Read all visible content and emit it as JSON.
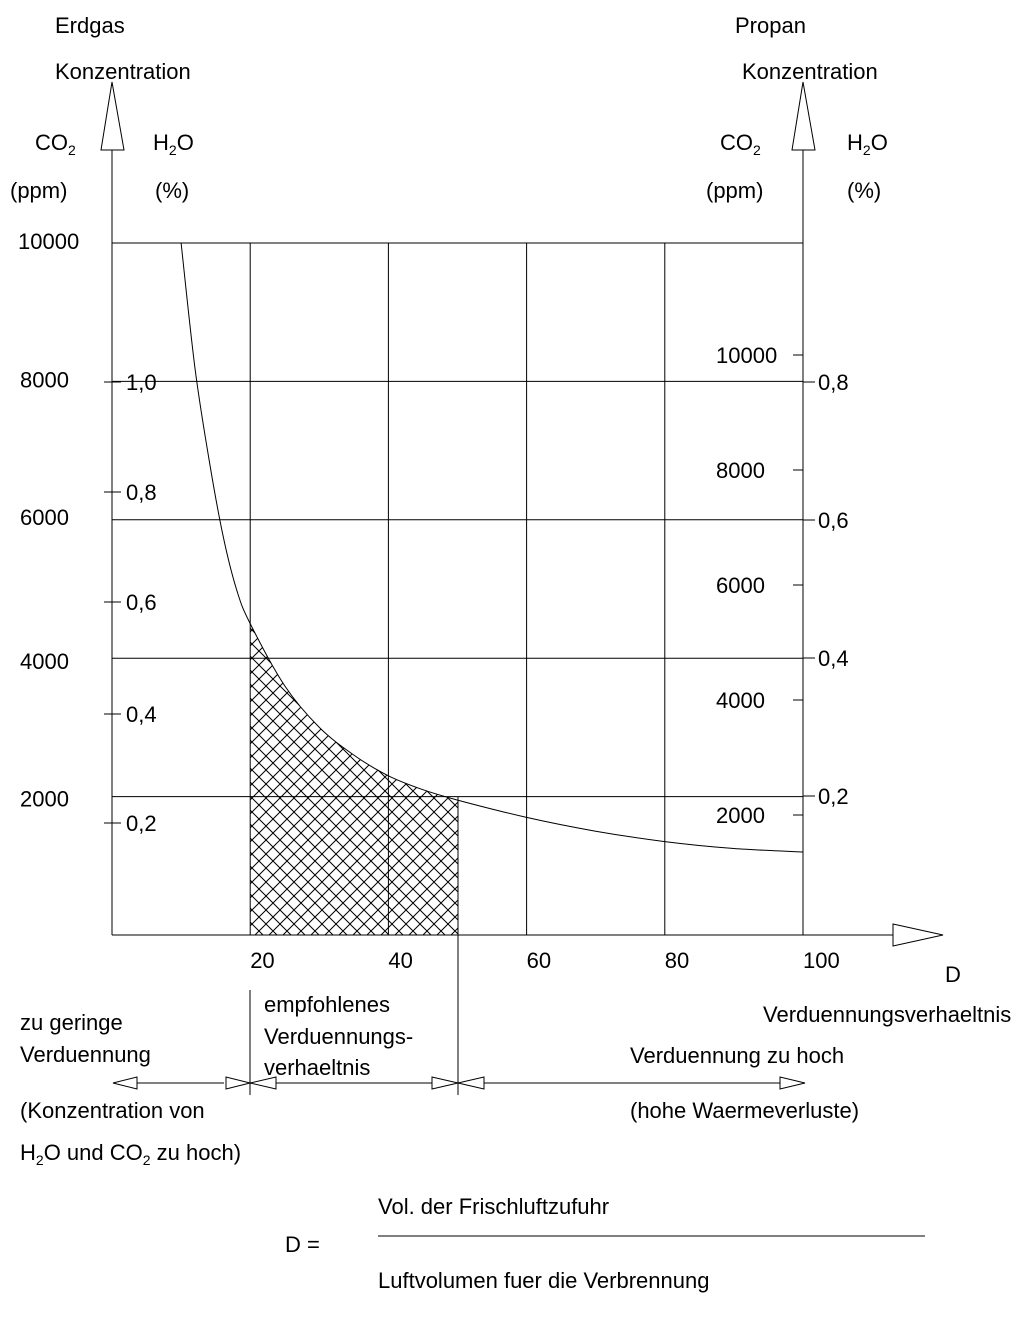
{
  "chart_data": {
    "type": "line",
    "x_axis": {
      "ticks": [
        "20",
        "40",
        "60",
        "80",
        "100"
      ],
      "symbol": "D",
      "label": "Verduennungsverhaeltnis",
      "range": [
        0,
        100
      ]
    },
    "left_axis": {
      "title": [
        "Erdgas",
        "Konzentration"
      ],
      "co2_label": "CO",
      "co2_sub": "2",
      "co2_unit": "(ppm)",
      "h2o_label_a": "H",
      "h2o_sub": "2",
      "h2o_label_b": "O",
      "h2o_unit": "(%)",
      "co2_ticks": [
        "10000",
        "8000",
        "6000",
        "4000",
        "2000"
      ],
      "h2o_ticks": [
        "1,0",
        "0,8",
        "0,6",
        "0,4",
        "0,2"
      ]
    },
    "right_axis": {
      "title": [
        "Propan",
        "Konzentration"
      ],
      "co2_label": "CO",
      "co2_sub": "2",
      "co2_unit": "(ppm)",
      "h2o_label_a": "H",
      "h2o_sub": "2",
      "h2o_label_b": "O",
      "h2o_unit": "(%)",
      "co2_ticks": [
        "10000",
        "8000",
        "6000",
        "4000",
        "2000"
      ],
      "h2o_ticks": [
        "0,8",
        "0,6",
        "0,4",
        "0,2"
      ]
    },
    "curve": {
      "x": [
        10,
        12,
        14,
        16,
        18,
        20,
        25,
        30,
        35,
        40,
        45,
        50,
        60,
        70,
        80,
        90,
        100
      ],
      "y_co2_erdgas_ppm": [
        10000,
        8200,
        6900,
        5800,
        5000,
        4500,
        3600,
        3000,
        2600,
        2300,
        2100,
        1950,
        1700,
        1500,
        1350,
        1250,
        1200
      ]
    },
    "recommended_range": [
      20,
      50
    ],
    "zones": {
      "low": {
        "title": [
          "zu geringe",
          "Verduennung"
        ],
        "note_line1": "(Konzentration von",
        "note_line2_a": "H",
        "note_line2_sub1": "2",
        "note_line2_b": "O und CO",
        "note_line2_sub2": "2",
        "note_line2_c": " zu hoch)"
      },
      "recommended": {
        "title": [
          "empfohlenes",
          "Verduennungs-",
          "verhaeltnis"
        ]
      },
      "high": {
        "title": "Verduennung zu hoch",
        "note": "(hohe Waermeverluste)"
      }
    },
    "formula": {
      "lhs": "D =",
      "numerator": "Vol. der Frischluftzufuhr",
      "denominator": "Luftvolumen fuer die Verbrennung"
    }
  }
}
